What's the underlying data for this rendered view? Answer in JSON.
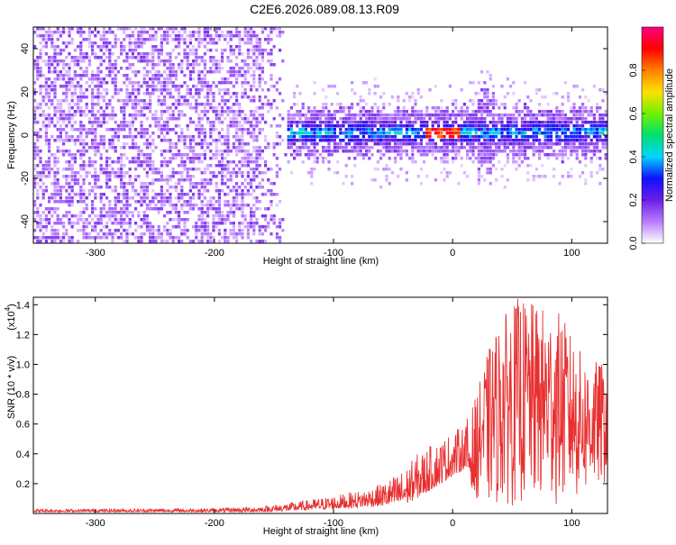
{
  "figure": {
    "title": "C2E6.2026.089.08.13.R09"
  },
  "chart_data": [
    {
      "type": "heatmap",
      "title": "C2E6.2026.089.08.13.R09",
      "xlabel": "Height of straight line (km)",
      "ylabel": "Frequency (Hz)",
      "xlim": [
        -352,
        130
      ],
      "ylim": [
        -50,
        50
      ],
      "x_ticks": [
        -300,
        -200,
        -100,
        0,
        100
      ],
      "y_ticks": [
        -40,
        -20,
        0,
        20,
        40
      ],
      "colorbar": {
        "label": "Normalized spectral amplitude",
        "range": [
          0,
          1
        ],
        "ticks": [
          0.0,
          0.2,
          0.4,
          0.6,
          0.8
        ],
        "tick_labels": [
          "0.0",
          "0.2",
          "0.4",
          "0.6",
          "0.8"
        ],
        "colors": [
          "#ffffff",
          "#b87cff",
          "#6a1fe6",
          "#1010ff",
          "#00d5ff",
          "#00e070",
          "#70f000",
          "#ffe000",
          "#ff8000",
          "#ff0000",
          "#ff0080"
        ]
      },
      "features": {
        "noise_region_x": [
          -352,
          -140
        ],
        "band_center_freq": 2,
        "band_halfwidth": 8,
        "hot_spot_x": -10,
        "spike_x": [
          20,
          35
        ]
      }
    },
    {
      "type": "line",
      "xlabel": "Height of straight line (km)",
      "ylabel": "SNR (10 * v/v)",
      "y_multiplier": "(x10",
      "y_multiplier_exp": "4",
      "xlim": [
        -352,
        130
      ],
      "ylim": [
        0,
        1.45
      ],
      "x_ticks": [
        -300,
        -200,
        -100,
        0,
        100
      ],
      "y_ticks": [
        0.2,
        0.4,
        0.6,
        0.8,
        1.0,
        1.2,
        1.4
      ],
      "y_tick_labels": [
        "0.2",
        "0.4",
        "0.6",
        "0.8",
        "1.0",
        "1.2",
        "1.4"
      ],
      "color": "#e83030",
      "envelope": {
        "x": [
          -352,
          -200,
          -160,
          -130,
          -100,
          -80,
          -60,
          -40,
          -30,
          -20,
          -10,
          0,
          10,
          20,
          30,
          40,
          55,
          70,
          90,
          110,
          130
        ],
        "upper": [
          0.03,
          0.035,
          0.05,
          0.08,
          0.12,
          0.15,
          0.2,
          0.3,
          0.4,
          0.45,
          0.5,
          0.55,
          0.6,
          0.8,
          1.1,
          1.3,
          1.45,
          1.4,
          1.35,
          1.05,
          1.0
        ],
        "lower": [
          0.01,
          0.01,
          0.01,
          0.02,
          0.03,
          0.04,
          0.05,
          0.06,
          0.1,
          0.15,
          0.2,
          0.25,
          0.3,
          0.1,
          0.05,
          0.05,
          0.05,
          0.05,
          0.05,
          0.1,
          0.2
        ]
      }
    }
  ]
}
